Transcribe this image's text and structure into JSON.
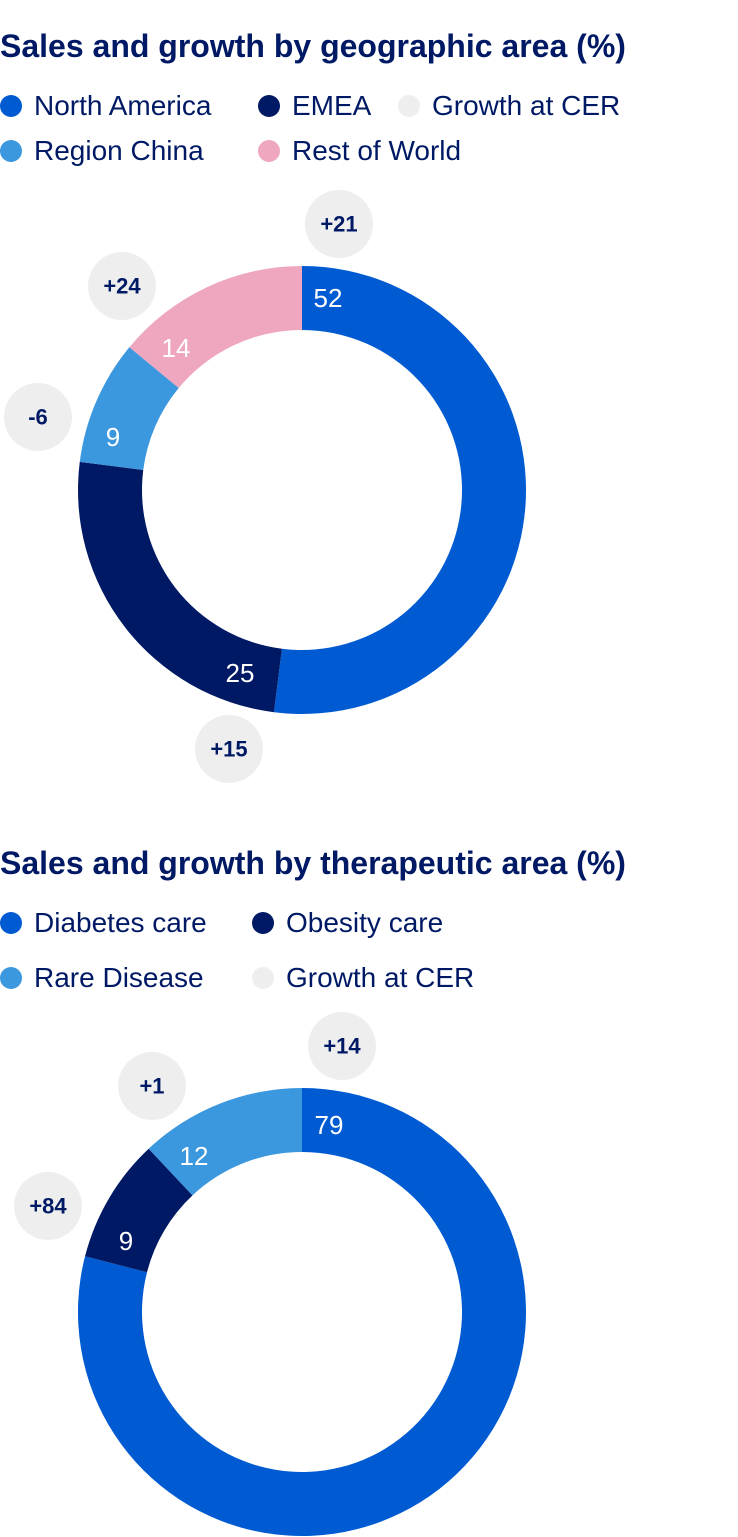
{
  "colors": {
    "north_america": "#005ad2",
    "emea": "#001965",
    "region_china": "#3b97de",
    "rest_of_world": "#eea7bf",
    "growth_bubble": "#efeeee",
    "diabetes_care": "#005ad2",
    "obesity_care": "#001965",
    "rare_disease": "#3b97de",
    "title": "#001965"
  },
  "geo": {
    "title": "Sales and growth by geographic area (%)",
    "legend": [
      {
        "label": "North America",
        "color": "#005ad2"
      },
      {
        "label": "EMEA",
        "color": "#001965"
      },
      {
        "label": "Growth at CER",
        "color": "#efeeee"
      },
      {
        "label": "Region China",
        "color": "#3b97de"
      },
      {
        "label": "Rest of World",
        "color": "#eea7bf"
      }
    ]
  },
  "ther": {
    "title": "Sales and growth by therapeutic area (%)",
    "legend": [
      {
        "label": "Diabetes care",
        "color": "#005ad2"
      },
      {
        "label": "Obesity care",
        "color": "#001965"
      },
      {
        "label": "Rare Disease",
        "color": "#3b97de"
      },
      {
        "label": "Growth at CER",
        "color": "#efeeee"
      }
    ]
  },
  "chart_data": [
    {
      "type": "pie",
      "title": "Sales and growth by geographic area (%)",
      "categories": [
        "North America",
        "EMEA",
        "Region China",
        "Rest of World"
      ],
      "values": [
        52,
        25,
        9,
        14
      ],
      "growth_at_cer": [
        "+21",
        "+15",
        "-6",
        "+24"
      ],
      "colors": [
        "#005ad2",
        "#001965",
        "#3b97de",
        "#eea7bf"
      ],
      "value_label_colors": [
        "#ffffff",
        "#ffffff",
        "#ffffff",
        "#ffffff"
      ]
    },
    {
      "type": "pie",
      "title": "Sales and growth by therapeutic area (%)",
      "categories": [
        "Diabetes care",
        "Obesity care",
        "Rare Disease"
      ],
      "values": [
        79,
        9,
        12
      ],
      "growth_at_cer": [
        "+14",
        "+84",
        "+1"
      ],
      "colors": [
        "#005ad2",
        "#001965",
        "#3b97de"
      ],
      "value_label_colors": [
        "#ffffff",
        "#ffffff",
        "#ffffff"
      ]
    }
  ]
}
